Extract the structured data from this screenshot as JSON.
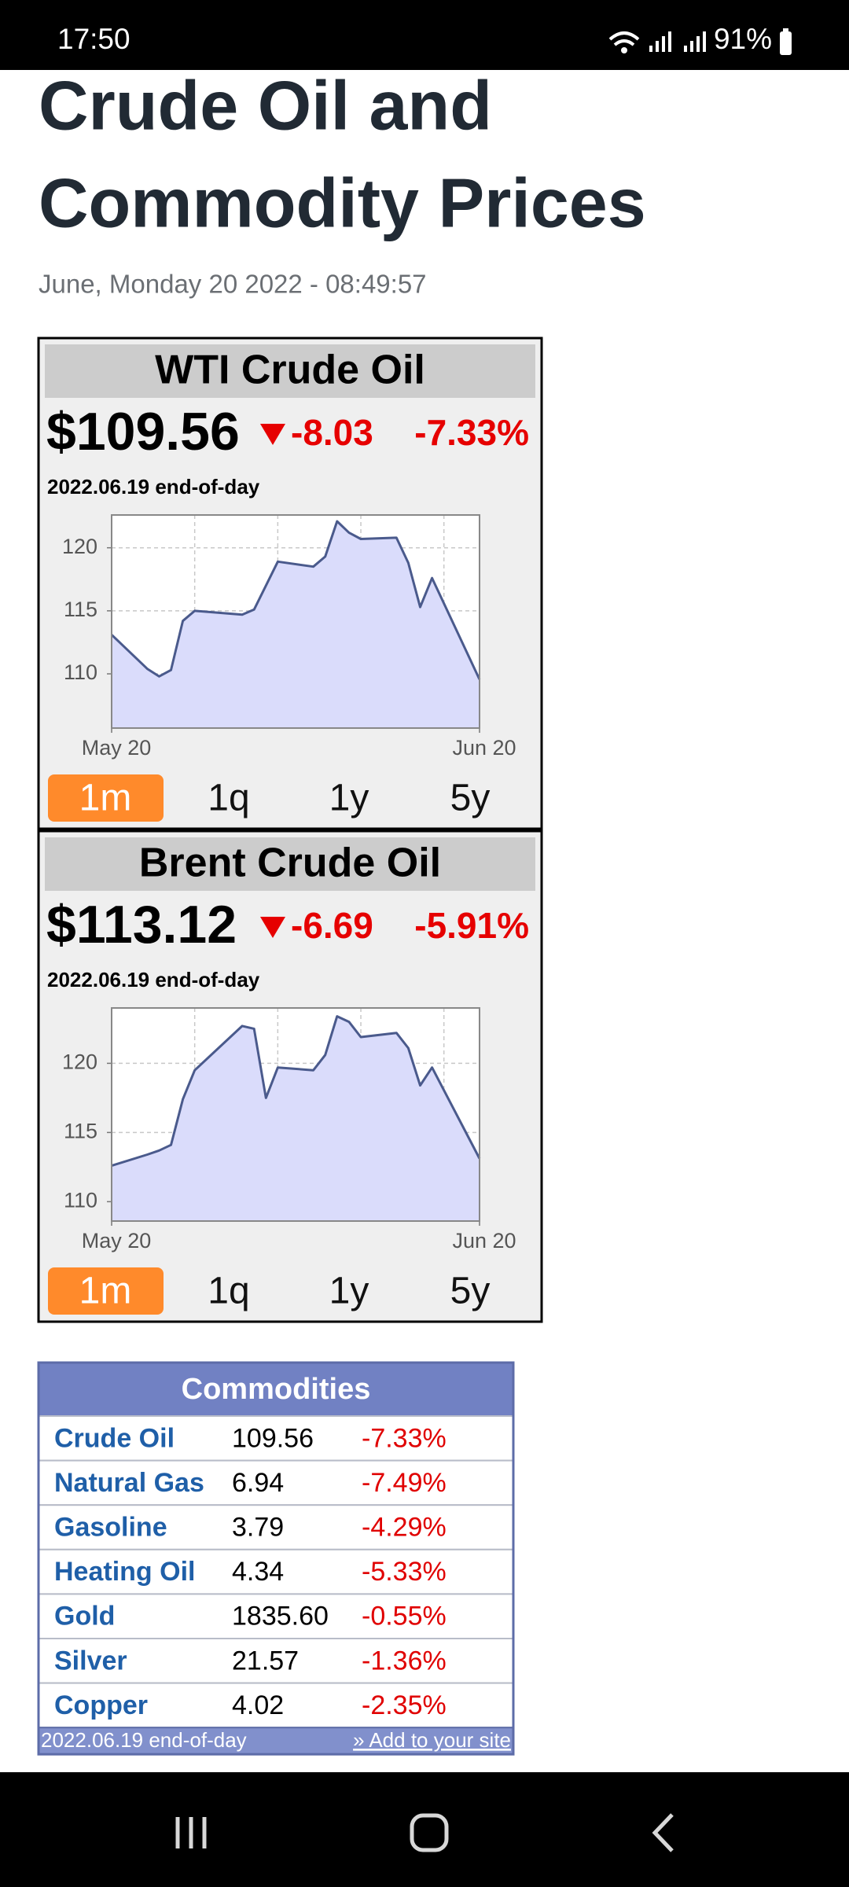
{
  "status_bar": {
    "time": "17:50",
    "battery": "91%"
  },
  "header": {
    "title_lines": [
      "Crude Oil and",
      "Commodity Prices"
    ],
    "date": "June, Monday 20 2022 - 08:49:57"
  },
  "widgets": [
    {
      "title": "WTI Crude Oil",
      "price": "$109.56",
      "change": "-8.03",
      "change_pct": "-7.33%",
      "as_of": "2022.06.19 end-of-day",
      "chart": {
        "type": "area",
        "x": [
          0,
          3,
          4,
          5,
          6,
          7,
          11,
          12,
          14,
          17,
          18,
          19,
          20,
          21,
          24,
          25,
          26,
          27,
          31
        ],
        "values": [
          113.1,
          110.4,
          109.8,
          110.3,
          114.2,
          115,
          114.7,
          115.1,
          118.9,
          118.5,
          119.3,
          122.1,
          121.2,
          120.7,
          120.8,
          118.8,
          115.3,
          117.6,
          109.56
        ],
        "xlim": [
          0,
          31
        ],
        "ylim": [
          105.7,
          122.6
        ],
        "yticks": [
          110,
          115,
          120
        ],
        "xticks": [
          {
            "value": 0,
            "label": "May 20"
          },
          {
            "value": 31,
            "label": "Jun 20"
          }
        ],
        "xgrid": [
          7,
          14,
          21,
          28
        ],
        "grid": true,
        "color": "#4a5a8c",
        "fill": "#dadcfb"
      },
      "ranges": [
        "1m",
        "1q",
        "1y",
        "5y"
      ],
      "active_range": "1m"
    },
    {
      "title": "Brent Crude Oil",
      "price": "$113.12",
      "change": "-6.69",
      "change_pct": "-5.91%",
      "as_of": "2022.06.19 end-of-day",
      "chart": {
        "type": "area",
        "x": [
          0,
          3,
          4,
          5,
          6,
          7,
          11,
          12,
          13,
          14,
          17,
          18,
          19,
          20,
          21,
          24,
          25,
          26,
          27,
          31
        ],
        "values": [
          112.6,
          113.4,
          113.7,
          114.1,
          117.4,
          119.5,
          122.7,
          122.5,
          117.5,
          119.7,
          119.5,
          120.6,
          123.4,
          123,
          121.9,
          122.2,
          121.1,
          118.4,
          119.7,
          113.12
        ],
        "xlim": [
          0,
          31
        ],
        "ylim": [
          108.6,
          124
        ],
        "yticks": [
          110,
          115,
          120
        ],
        "xticks": [
          {
            "value": 0,
            "label": "May 20"
          },
          {
            "value": 31,
            "label": "Jun 20"
          }
        ],
        "xgrid": [
          7,
          14,
          21,
          28
        ],
        "grid": true,
        "color": "#4a5a8c",
        "fill": "#dadcfb"
      },
      "ranges": [
        "1m",
        "1q",
        "1y",
        "5y"
      ],
      "active_range": "1m"
    }
  ],
  "table": {
    "title": "Commodities",
    "rows": [
      [
        "Crude Oil",
        "109.56",
        "-7.33%"
      ],
      [
        "Natural Gas",
        "6.94",
        "-7.49%"
      ],
      [
        "Gasoline",
        "3.79",
        "-4.29%"
      ],
      [
        "Heating Oil",
        "4.34",
        "-5.33%"
      ],
      [
        "Gold",
        "1835.60",
        "-0.55%"
      ],
      [
        "Silver",
        "21.57",
        "-1.36%"
      ],
      [
        "Copper",
        "4.02",
        "-2.35%"
      ]
    ],
    "footer": "2022.06.19 end-of-day",
    "link": "» Add to your site"
  }
}
